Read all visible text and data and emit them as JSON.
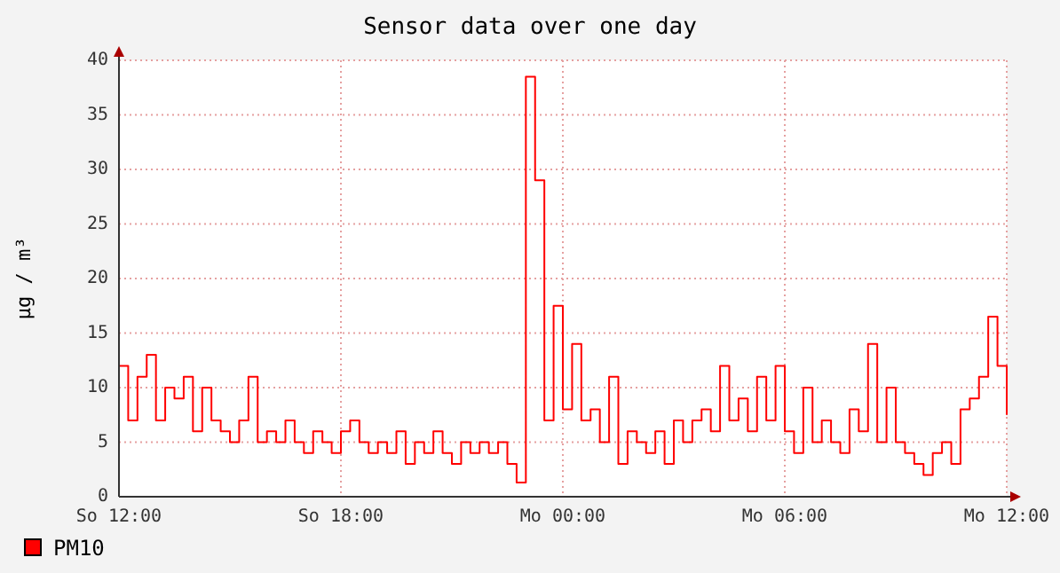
{
  "chart_data": {
    "type": "step",
    "title": "Sensor data over one day",
    "ylabel": "µg / m³",
    "categories": [
      "So 12:00",
      null,
      null,
      null,
      null,
      null,
      null,
      null,
      null,
      null,
      null,
      null,
      null,
      null,
      null,
      null,
      null,
      null,
      null,
      null,
      null,
      null,
      null,
      null,
      "So 18:00",
      null,
      null,
      null,
      null,
      null,
      null,
      null,
      null,
      null,
      null,
      null,
      null,
      null,
      null,
      null,
      null,
      null,
      null,
      null,
      null,
      null,
      null,
      null,
      "Mo 00:00",
      null,
      null,
      null,
      null,
      null,
      null,
      null,
      null,
      null,
      null,
      null,
      null,
      null,
      null,
      null,
      null,
      null,
      null,
      null,
      null,
      null,
      null,
      null,
      "Mo 06:00",
      null,
      null,
      null,
      null,
      null,
      null,
      null,
      null,
      null,
      null,
      null,
      null,
      null,
      null,
      null,
      null,
      null,
      null,
      null,
      null,
      null,
      null,
      null,
      "Mo 12:00"
    ],
    "series": [
      {
        "name": "PM10",
        "color": "#ff0000",
        "values": [
          12,
          7,
          11,
          13,
          7,
          10,
          9,
          11,
          6,
          10,
          7,
          6,
          5,
          7,
          11,
          5,
          6,
          5,
          7,
          5,
          4,
          6,
          5,
          4,
          6,
          7,
          5,
          4,
          5,
          4,
          6,
          3,
          5,
          4,
          6,
          4,
          3,
          5,
          4,
          5,
          4,
          5,
          3,
          1.3,
          38.5,
          29,
          7,
          17.5,
          8,
          14,
          7,
          8,
          5,
          11,
          3,
          6,
          5,
          4,
          6,
          3,
          7,
          5,
          7,
          8,
          6,
          12,
          7,
          9,
          6,
          11,
          7,
          12,
          6,
          4,
          10,
          5,
          7,
          5,
          4,
          8,
          6,
          14,
          5,
          10,
          5,
          4,
          3,
          2,
          4,
          5,
          3,
          8,
          9,
          11,
          16.5,
          12,
          7.5
        ]
      }
    ],
    "ylim": [
      0,
      40
    ],
    "yticks": [
      0,
      5,
      10,
      15,
      20,
      25,
      30,
      35,
      40
    ],
    "grid": true,
    "legend": "bottom left"
  }
}
